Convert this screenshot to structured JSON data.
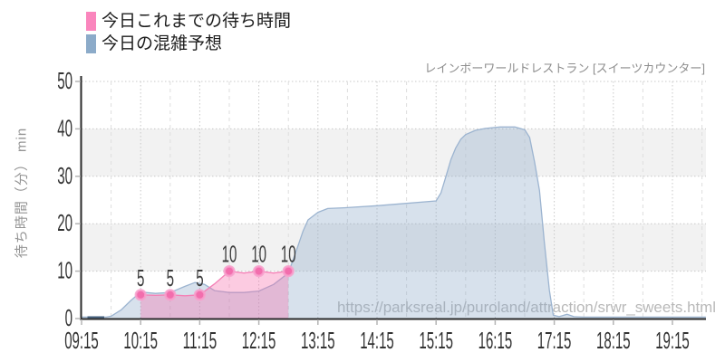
{
  "legend": {
    "items": [
      {
        "label": "今日これまでの待ち時間",
        "color": "#fa86bd"
      },
      {
        "label": "今日の混雑予想",
        "color": "#8cabc9"
      }
    ]
  },
  "header": {
    "title": "レインボーワールドレストラン [スイーツカウンター]"
  },
  "watermark": {
    "text": "https://parksreal.jp/puroland/attraction/srwr_sweets.html",
    "color": "#b9b9b9"
  },
  "chart_data": {
    "type": "area",
    "title": "レインボーワールドレストラン [スイーツカウンター]",
    "xlabel": "",
    "ylabel": "待ち時間（分） min",
    "ylim": [
      0,
      50
    ],
    "y_ticks": [
      0,
      10,
      20,
      30,
      40,
      50
    ],
    "x_ticks": [
      "09:15",
      "10:15",
      "11:15",
      "12:15",
      "13:15",
      "14:15",
      "15:15",
      "16:15",
      "17:15",
      "18:15",
      "19:15"
    ],
    "x_minor_ticks": [
      "09:45",
      "10:45",
      "11:45",
      "12:45",
      "13:45",
      "14:45",
      "15:45",
      "16:45",
      "17:45",
      "18:45",
      "19:45"
    ],
    "x_start": "09:15",
    "x_end": "19:49",
    "grid": true,
    "legend_position": "top-left",
    "band_fill": "#f2f2f2",
    "axis_color": "#2a2a2a",
    "grid_major_color": "#c9c9c9",
    "grid_minor_color": "#dedede",
    "tick_color": "#b5b5b5",
    "tick_label_color": "#333333",
    "point_label_color": "#3d3d3d",
    "series": [
      {
        "name": "今日の混雑予想",
        "kind": "prediction",
        "line_color": "#9cb4d0",
        "fill_color": "rgba(135,165,197,0.33)",
        "points": [
          [
            "09:15",
            0.3
          ],
          [
            "09:40",
            0.3
          ],
          [
            "09:45",
            0.5
          ],
          [
            "09:55",
            1.8
          ],
          [
            "10:05",
            3.8
          ],
          [
            "10:15",
            5.6
          ],
          [
            "10:30",
            5.3
          ],
          [
            "10:45",
            5.5
          ],
          [
            "11:00",
            6.8
          ],
          [
            "11:10",
            7.6
          ],
          [
            "11:20",
            7.2
          ],
          [
            "11:30",
            5.9
          ],
          [
            "11:45",
            5.5
          ],
          [
            "12:00",
            5.5
          ],
          [
            "12:15",
            5.8
          ],
          [
            "12:30",
            7.2
          ],
          [
            "12:45",
            9.6
          ],
          [
            "12:50",
            12.5
          ],
          [
            "12:55",
            15.5
          ],
          [
            "13:00",
            18.5
          ],
          [
            "13:05",
            20.8
          ],
          [
            "13:15",
            22.4
          ],
          [
            "13:25",
            23.2
          ],
          [
            "13:45",
            23.4
          ],
          [
            "14:15",
            23.8
          ],
          [
            "14:45",
            24.3
          ],
          [
            "15:15",
            24.8
          ],
          [
            "15:20",
            26.5
          ],
          [
            "15:25",
            30
          ],
          [
            "15:30",
            33.5
          ],
          [
            "15:35",
            36
          ],
          [
            "15:40",
            37.8
          ],
          [
            "15:45",
            38.8
          ],
          [
            "15:55",
            39.7
          ],
          [
            "16:05",
            40.1
          ],
          [
            "16:20",
            40.4
          ],
          [
            "16:35",
            40.4
          ],
          [
            "16:45",
            39.8
          ],
          [
            "16:50",
            38.2
          ],
          [
            "16:55",
            33
          ],
          [
            "17:00",
            27
          ],
          [
            "17:05",
            16
          ],
          [
            "17:10",
            6
          ],
          [
            "17:14",
            0.7
          ],
          [
            "17:20",
            0.4
          ],
          [
            "17:28",
            0.9
          ],
          [
            "17:35",
            0.4
          ],
          [
            "17:45",
            0.3
          ],
          [
            "18:15",
            0.3
          ],
          [
            "19:15",
            0.3
          ],
          [
            "19:49",
            0.3
          ]
        ]
      },
      {
        "name": "今日これまでの待ち時間",
        "kind": "actual",
        "line_color": "#f480b6",
        "fill_color": "rgba(246,110,173,0.36)",
        "marker_color": "#f26ead",
        "marker_halo": "rgba(248,160,205,0.85)",
        "points": [
          [
            "10:15",
            5
          ],
          [
            "10:30",
            4.9
          ],
          [
            "10:45",
            5
          ],
          [
            "11:00",
            4.8
          ],
          [
            "11:15",
            5
          ],
          [
            "11:30",
            7.3
          ],
          [
            "11:45",
            10
          ],
          [
            "12:00",
            9.6
          ],
          [
            "12:15",
            10
          ],
          [
            "12:30",
            9.6
          ],
          [
            "12:45",
            10
          ]
        ],
        "markers": [
          [
            "10:15",
            5
          ],
          [
            "10:45",
            5
          ],
          [
            "11:15",
            5
          ],
          [
            "11:45",
            10
          ],
          [
            "12:15",
            10
          ],
          [
            "12:45",
            10
          ]
        ],
        "marker_labels": [
          "5",
          "5",
          "5",
          "10",
          "10",
          "10"
        ]
      }
    ],
    "early_actual_segment": {
      "from": "09:21",
      "to": "09:38",
      "value": 0.3,
      "color": "#3f5d7c"
    }
  }
}
